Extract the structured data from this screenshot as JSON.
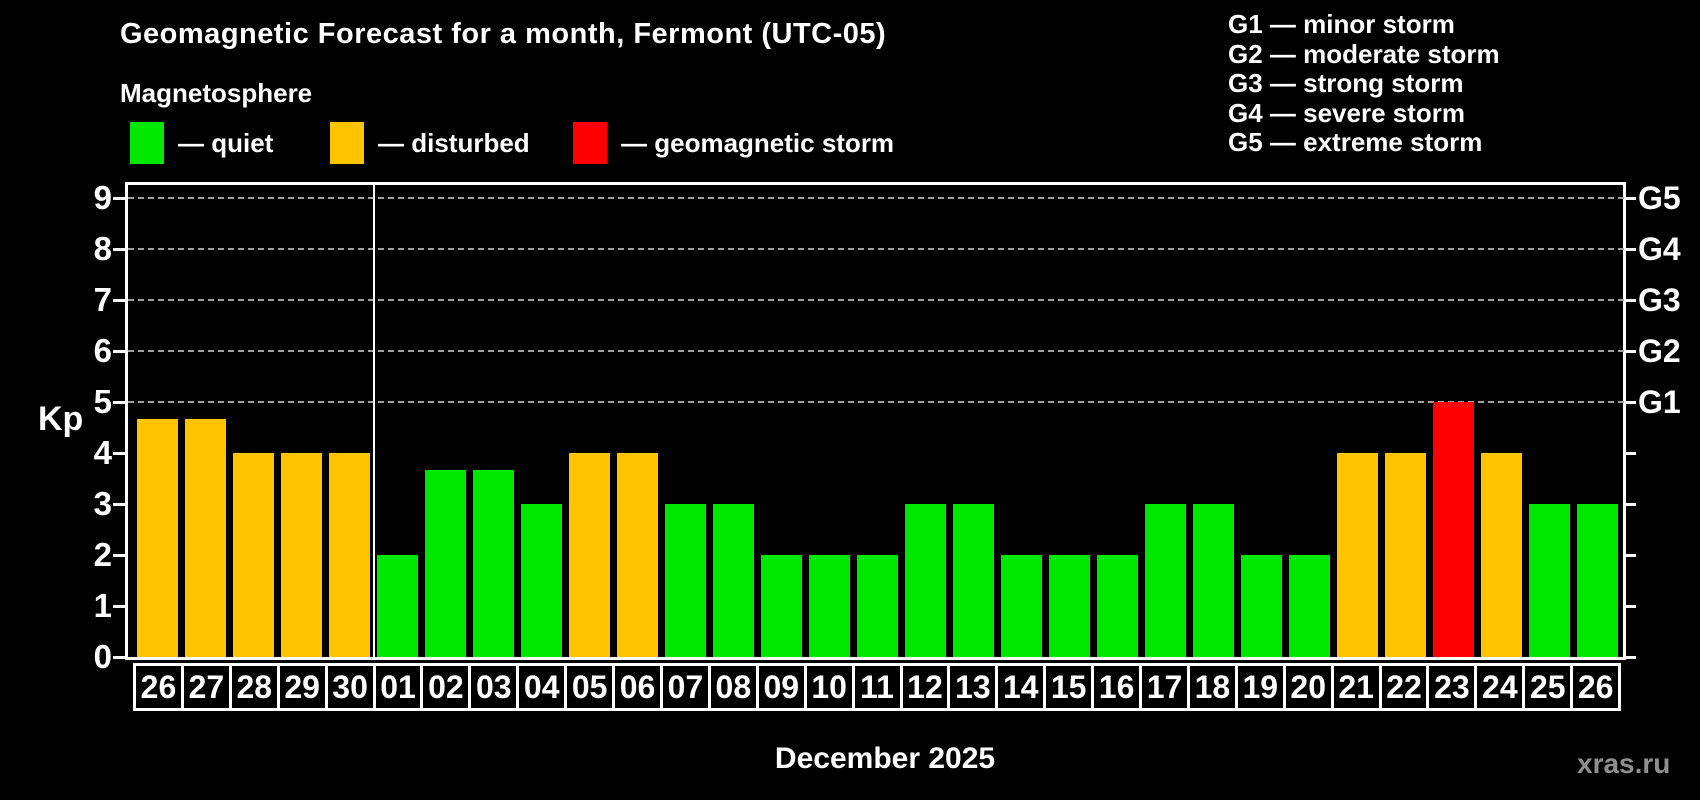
{
  "header": {
    "title": "Geomagnetic Forecast for a month, Fermont (UTC-05)",
    "subtitle": "Magnetosphere"
  },
  "mag_legend": [
    {
      "label": "— quiet",
      "status": "quiet",
      "x": 130
    },
    {
      "label": "— disturbed",
      "status": "disturbed",
      "x": 330
    },
    {
      "label": "— geomagnetic storm",
      "status": "storm",
      "x": 573
    }
  ],
  "g_legend": [
    "G1 — minor storm",
    "G2 — moderate storm",
    "G3 — strong storm",
    "G4 — severe storm",
    "G5 — extreme storm"
  ],
  "axes": {
    "y_label": "Kp",
    "y_ticks": [
      0,
      1,
      2,
      3,
      4,
      5,
      6,
      7,
      8,
      9
    ],
    "right_labels": [
      {
        "label": "G1",
        "value": 5
      },
      {
        "label": "G2",
        "value": 6
      },
      {
        "label": "G3",
        "value": 7
      },
      {
        "label": "G4",
        "value": 8
      },
      {
        "label": "G5",
        "value": 9
      }
    ],
    "gridline_values": [
      5,
      6,
      7,
      8,
      9
    ],
    "x_title": "December 2025"
  },
  "colors": {
    "quiet": "#00e800",
    "disturbed": "#ffc400",
    "storm": "#ff0000",
    "grid": "#a0a0a0",
    "frame": "#ffffff",
    "background": "#000000",
    "watermark_text": "#8f8f8f"
  },
  "watermark": "xras.ru",
  "chart_data": {
    "type": "bar",
    "title": "Geomagnetic Forecast for a month, Fermont (UTC-05)",
    "xlabel": "December 2025",
    "ylabel": "Kp",
    "ylim": [
      0,
      9.4
    ],
    "grid": "dashed horizontal at 5,6,7,8,9",
    "legend_position": "top",
    "month_divider_after_index": 4,
    "categories": [
      "26",
      "27",
      "28",
      "29",
      "30",
      "01",
      "02",
      "03",
      "04",
      "05",
      "06",
      "07",
      "08",
      "09",
      "10",
      "11",
      "12",
      "13",
      "14",
      "15",
      "16",
      "17",
      "18",
      "19",
      "20",
      "21",
      "22",
      "23",
      "24",
      "25",
      "26"
    ],
    "values": [
      4.67,
      4.67,
      4,
      4,
      4,
      2,
      3.67,
      3.67,
      3,
      4,
      4,
      3,
      3,
      2,
      2,
      2,
      3,
      3,
      2,
      2,
      2,
      3,
      3,
      2,
      2,
      4,
      4,
      5,
      4,
      3,
      3
    ],
    "statuses": [
      "disturbed",
      "disturbed",
      "disturbed",
      "disturbed",
      "disturbed",
      "quiet",
      "quiet",
      "quiet",
      "quiet",
      "disturbed",
      "disturbed",
      "quiet",
      "quiet",
      "quiet",
      "quiet",
      "quiet",
      "quiet",
      "quiet",
      "quiet",
      "quiet",
      "quiet",
      "quiet",
      "quiet",
      "quiet",
      "quiet",
      "disturbed",
      "disturbed",
      "storm",
      "disturbed",
      "quiet",
      "quiet"
    ]
  }
}
